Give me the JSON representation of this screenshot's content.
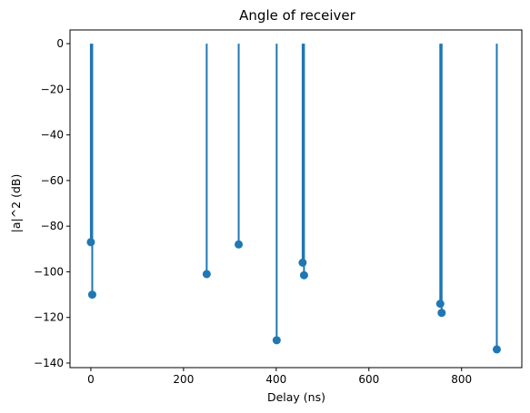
{
  "chart_data": {
    "type": "stem",
    "title": "Angle of receiver",
    "xlabel": "Delay (ns)",
    "ylabel": "|a|^2 (dB)",
    "xlim": [
      -45,
      930
    ],
    "ylim": [
      -142,
      6
    ],
    "baseline": 0,
    "x_ticks": [
      0,
      200,
      400,
      600,
      800
    ],
    "y_ticks": [
      0,
      -20,
      -40,
      -60,
      -80,
      -100,
      -120,
      -140
    ],
    "x_tick_labels": [
      "0",
      "200",
      "400",
      "600",
      "800"
    ],
    "y_tick_labels": [
      "0",
      "−20",
      "−40",
      "−60",
      "−80",
      "−100",
      "−120",
      "−140"
    ],
    "grid": false,
    "color": "#1f77b4",
    "points": [
      {
        "x": 0,
        "y": -87
      },
      {
        "x": 3,
        "y": -110
      },
      {
        "x": 250,
        "y": -101
      },
      {
        "x": 319,
        "y": -88
      },
      {
        "x": 401,
        "y": -130
      },
      {
        "x": 457,
        "y": -96
      },
      {
        "x": 460,
        "y": -101.5
      },
      {
        "x": 754,
        "y": -114
      },
      {
        "x": 757,
        "y": -118
      },
      {
        "x": 876,
        "y": -134
      }
    ]
  }
}
